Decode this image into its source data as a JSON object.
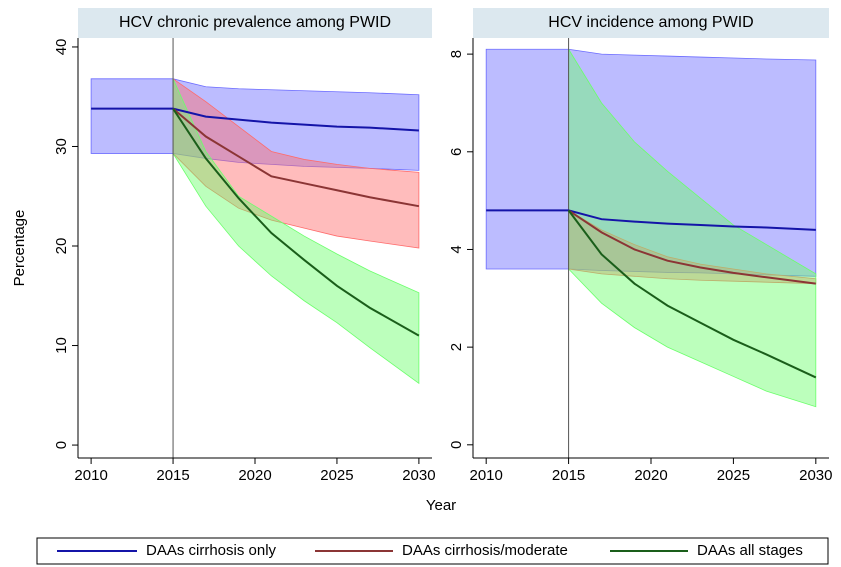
{
  "xlabel": "Year",
  "ylabel": "Percentage",
  "chart_data": [
    {
      "type": "line",
      "title": "HCV chronic prevalence among PWID",
      "x": [
        2010,
        2015,
        2017,
        2019,
        2021,
        2023,
        2025,
        2027,
        2030
      ],
      "xlim": [
        2009.2,
        2030.8
      ],
      "xticks": [
        2010,
        2015,
        2020,
        2025,
        2030
      ],
      "ylim": [
        -1.3,
        40.9
      ],
      "yticks": [
        0,
        10,
        20,
        30,
        40
      ],
      "vline": 2015,
      "series": [
        {
          "name": "DAAs cirrhosis only",
          "color": "#1414a8",
          "band_color": "#6b6bff",
          "values": [
            33.8,
            33.8,
            33.0,
            32.7,
            32.4,
            32.2,
            32.0,
            31.9,
            31.6
          ],
          "lower": [
            29.3,
            29.3,
            28.8,
            28.4,
            28.2,
            28.0,
            27.9,
            27.8,
            27.6
          ],
          "upper": [
            36.8,
            36.8,
            36.0,
            35.8,
            35.7,
            35.6,
            35.5,
            35.4,
            35.2
          ]
        },
        {
          "name": "DAAs cirrhosis/moderate",
          "color": "#8b3535",
          "band_color": "#ff6b6b",
          "values": [
            null,
            33.8,
            31.0,
            29.0,
            27.0,
            26.3,
            25.6,
            24.9,
            24.0
          ],
          "lower": [
            null,
            29.3,
            26.0,
            23.8,
            22.6,
            21.8,
            21.0,
            20.5,
            19.8
          ],
          "upper": [
            null,
            36.8,
            34.5,
            32.0,
            29.5,
            28.7,
            28.2,
            27.8,
            27.4
          ]
        },
        {
          "name": "DAAs all stages",
          "color": "#1a5e1a",
          "band_color": "#6bff6b",
          "values": [
            null,
            33.8,
            28.8,
            24.8,
            21.3,
            18.6,
            16.0,
            13.8,
            11.0
          ],
          "lower": [
            null,
            29.3,
            24.0,
            20.0,
            17.0,
            14.5,
            12.3,
            9.8,
            6.2
          ],
          "upper": [
            null,
            36.8,
            29.5,
            25.0,
            23.0,
            21.0,
            19.2,
            17.5,
            15.3
          ]
        }
      ]
    },
    {
      "type": "line",
      "title": "HCV incidence among PWID",
      "x": [
        2010,
        2015,
        2017,
        2019,
        2021,
        2023,
        2025,
        2027,
        2030
      ],
      "xlim": [
        2009.2,
        2030.8
      ],
      "xticks": [
        2010,
        2015,
        2020,
        2025,
        2030
      ],
      "ylim": [
        -0.27,
        8.33
      ],
      "yticks": [
        0,
        2,
        4,
        6,
        8
      ],
      "vline": 2015,
      "series": [
        {
          "color": "#1414a8",
          "band_color": "#6b6bff",
          "values": [
            4.8,
            4.8,
            4.62,
            4.57,
            4.53,
            4.5,
            4.47,
            4.45,
            4.4
          ],
          "lower": [
            3.6,
            3.6,
            3.57,
            3.55,
            3.53,
            3.52,
            3.5,
            3.48,
            3.45
          ],
          "upper": [
            8.1,
            8.1,
            8.0,
            7.98,
            7.96,
            7.94,
            7.92,
            7.9,
            7.88
          ]
        },
        {
          "color": "#8b3535",
          "band_color": "#ff6b6b",
          "values": [
            null,
            4.8,
            4.35,
            4.0,
            3.77,
            3.63,
            3.52,
            3.43,
            3.3
          ],
          "lower": [
            null,
            3.6,
            3.5,
            3.45,
            3.4,
            3.37,
            3.35,
            3.33,
            3.3
          ],
          "upper": [
            null,
            4.8,
            4.4,
            4.1,
            3.85,
            3.7,
            3.6,
            3.5,
            3.4
          ]
        },
        {
          "color": "#1a5e1a",
          "band_color": "#6bff6b",
          "values": [
            null,
            4.8,
            3.9,
            3.3,
            2.85,
            2.5,
            2.15,
            1.85,
            1.38
          ],
          "lower": [
            null,
            3.6,
            2.9,
            2.4,
            2.0,
            1.7,
            1.4,
            1.1,
            0.78
          ],
          "upper": [
            null,
            8.1,
            7.0,
            6.2,
            5.6,
            5.05,
            4.5,
            4.1,
            3.5
          ]
        }
      ]
    }
  ]
}
